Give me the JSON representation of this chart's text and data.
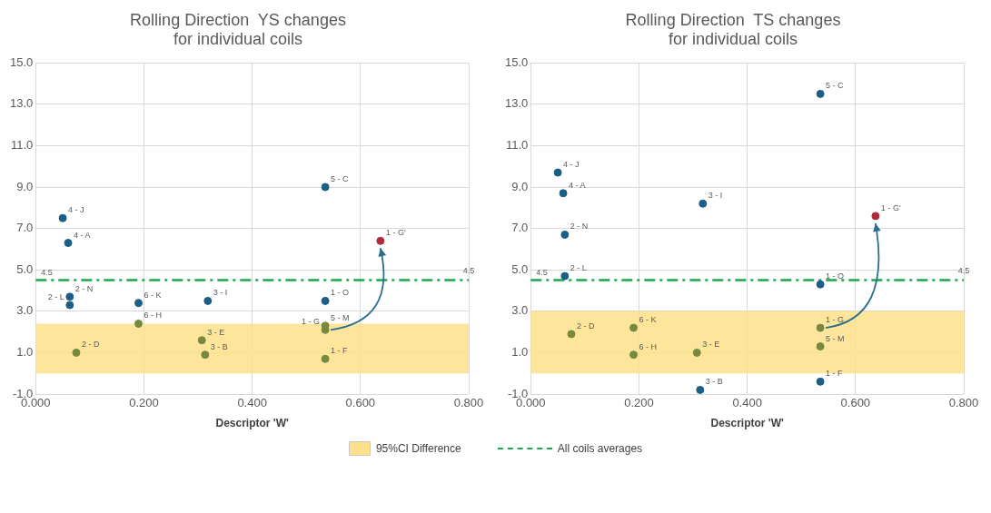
{
  "chart_data": [
    {
      "type": "scatter",
      "title": "Rolling Direction  YS changes\nfor individual coils",
      "xlabel": "Descriptor 'W'",
      "x": [
        0.05,
        0.06,
        0.063,
        0.063,
        0.075,
        0.19,
        0.19,
        0.318,
        0.307,
        0.313,
        0.535,
        0.535,
        0.535,
        0.535,
        0.535,
        0.637
      ],
      "values": [
        7.5,
        6.3,
        3.7,
        3.3,
        1.0,
        3.4,
        2.4,
        3.5,
        1.6,
        0.9,
        9.0,
        3.5,
        2.3,
        0.7,
        2.1,
        6.4
      ],
      "colors": [
        "#1b5e86",
        "#1b5e86",
        "#1b5e86",
        "#1b5e86",
        "#76893f",
        "#1b5e86",
        "#76893f",
        "#1b5e86",
        "#76893f",
        "#76893f",
        "#1b5e86",
        "#1b5e86",
        "#76893f",
        "#76893f",
        "#76893f",
        "#b02a3a"
      ],
      "marker": "circle",
      "xlim": [
        0,
        0.8
      ],
      "ylim": [
        -1,
        15
      ],
      "xticks": [
        {
          "value": 0,
          "label": "0.000"
        },
        {
          "value": 0.2,
          "label": "0.200"
        },
        {
          "value": 0.4,
          "label": "0.400"
        },
        {
          "value": 0.6,
          "label": "0.600"
        },
        {
          "value": 0.8,
          "label": "0.800"
        }
      ],
      "yticks": [
        {
          "value": -1,
          "label": "-1.0"
        },
        {
          "value": 1,
          "label": "1.0"
        },
        {
          "value": 3,
          "label": "3.0"
        },
        {
          "value": 5,
          "label": "5.0"
        },
        {
          "value": 7,
          "label": "7.0"
        },
        {
          "value": 9,
          "label": "9.0"
        },
        {
          "value": 11,
          "label": "11.0"
        },
        {
          "value": 13,
          "label": "13.0"
        },
        {
          "value": 15,
          "label": "15.0"
        }
      ],
      "grid": true,
      "bands": [
        {
          "axis": "y",
          "from": 0,
          "to": 2.4,
          "label": "95%CI Difference",
          "color": "#fde08a"
        }
      ],
      "ref_lines": [
        {
          "axis": "y",
          "value": 4.5,
          "label": "All coils averages",
          "color": "#1aa84a",
          "line_style": "dashed"
        }
      ],
      "legend": "bottom",
      "annotations": [
        {
          "text": "4 - J",
          "x": 0.05,
          "y": 7.5
        },
        {
          "text": "4 - A",
          "x": 0.06,
          "y": 6.3
        },
        {
          "text": "2 - N",
          "x": 0.063,
          "y": 3.7
        },
        {
          "text": "2 - L",
          "x": 0.063,
          "y": 3.3
        },
        {
          "text": "2 - D",
          "x": 0.075,
          "y": 1.0
        },
        {
          "text": "6 - K",
          "x": 0.19,
          "y": 3.4
        },
        {
          "text": "6 - H",
          "x": 0.19,
          "y": 2.4
        },
        {
          "text": "3 - I",
          "x": 0.318,
          "y": 3.5
        },
        {
          "text": "3 - E",
          "x": 0.307,
          "y": 1.6
        },
        {
          "text": "3 - B",
          "x": 0.313,
          "y": 0.9
        },
        {
          "text": "5 - C",
          "x": 0.535,
          "y": 9.0
        },
        {
          "text": "1 - O",
          "x": 0.535,
          "y": 3.5
        },
        {
          "text": "5 - M",
          "x": 0.535,
          "y": 2.3
        },
        {
          "text": "1 - F",
          "x": 0.535,
          "y": 0.7
        },
        {
          "text": "1 - G",
          "x": 0.535,
          "y": 2.1
        },
        {
          "text": "1 - G'",
          "x": 0.637,
          "y": 6.4
        },
        {
          "text": "4.5",
          "x": 0,
          "y": 4.5
        },
        {
          "text": "4.5",
          "x": 0.8,
          "y": 4.5
        }
      ]
    },
    {
      "type": "scatter",
      "title": "Rolling Direction  TS changes\nfor individual coils",
      "xlabel": "Descriptor 'W'",
      "x": [
        0.05,
        0.06,
        0.063,
        0.063,
        0.075,
        0.19,
        0.19,
        0.318,
        0.307,
        0.313,
        0.535,
        0.535,
        0.535,
        0.535,
        0.535,
        0.637
      ],
      "values": [
        9.7,
        8.7,
        6.7,
        4.7,
        1.9,
        2.2,
        0.9,
        8.2,
        1.0,
        -0.8,
        13.5,
        4.3,
        1.3,
        -0.4,
        2.2,
        7.6
      ],
      "colors": [
        "#1b5e86",
        "#1b5e86",
        "#1b5e86",
        "#1b5e86",
        "#76893f",
        "#76893f",
        "#76893f",
        "#1b5e86",
        "#76893f",
        "#1b5e86",
        "#1b5e86",
        "#1b5e86",
        "#76893f",
        "#1b5e86",
        "#76893f",
        "#b02a3a"
      ],
      "marker": "circle",
      "xlim": [
        0,
        0.8
      ],
      "ylim": [
        -1,
        15
      ],
      "xticks": [
        {
          "value": 0,
          "label": "0.000"
        },
        {
          "value": 0.2,
          "label": "0.200"
        },
        {
          "value": 0.4,
          "label": "0.400"
        },
        {
          "value": 0.6,
          "label": "0.600"
        },
        {
          "value": 0.8,
          "label": "0.800"
        }
      ],
      "yticks": [
        {
          "value": -1,
          "label": "-1.0"
        },
        {
          "value": 1,
          "label": "1.0"
        },
        {
          "value": 3,
          "label": "3.0"
        },
        {
          "value": 5,
          "label": "5.0"
        },
        {
          "value": 7,
          "label": "7.0"
        },
        {
          "value": 9,
          "label": "9.0"
        },
        {
          "value": 11,
          "label": "11.0"
        },
        {
          "value": 13,
          "label": "13.0"
        },
        {
          "value": 15,
          "label": "15.0"
        }
      ],
      "grid": true,
      "bands": [
        {
          "axis": "y",
          "from": 0,
          "to": 3.0,
          "color": "#fde08a"
        }
      ],
      "ref_lines": [
        {
          "axis": "y",
          "value": 4.5,
          "color": "#1aa84a",
          "line_style": "dashed"
        }
      ],
      "annotations": [
        {
          "text": "4 - J",
          "x": 0.05,
          "y": 9.7
        },
        {
          "text": "4 - A",
          "x": 0.06,
          "y": 8.7
        },
        {
          "text": "2 - N",
          "x": 0.063,
          "y": 6.7
        },
        {
          "text": "2 - L",
          "x": 0.063,
          "y": 4.7
        },
        {
          "text": "2 - D",
          "x": 0.075,
          "y": 1.9
        },
        {
          "text": "6 - K",
          "x": 0.19,
          "y": 2.2
        },
        {
          "text": "6 - H",
          "x": 0.19,
          "y": 0.9
        },
        {
          "text": "3 - I",
          "x": 0.318,
          "y": 8.2
        },
        {
          "text": "3 - E",
          "x": 0.307,
          "y": 1.0
        },
        {
          "text": "3 - B",
          "x": 0.313,
          "y": -0.8
        },
        {
          "text": "5 - C",
          "x": 0.535,
          "y": 13.5
        },
        {
          "text": "1 - O",
          "x": 0.535,
          "y": 4.3
        },
        {
          "text": "5 - M",
          "x": 0.535,
          "y": 1.3
        },
        {
          "text": "1 - F",
          "x": 0.535,
          "y": -0.4
        },
        {
          "text": "1 - G",
          "x": 0.535,
          "y": 2.2
        },
        {
          "text": "1 - G'",
          "x": 0.637,
          "y": 7.6
        },
        {
          "text": "4.5",
          "x": 0,
          "y": 4.5
        },
        {
          "text": "4.5",
          "x": 0.8,
          "y": 4.5
        }
      ]
    }
  ]
}
